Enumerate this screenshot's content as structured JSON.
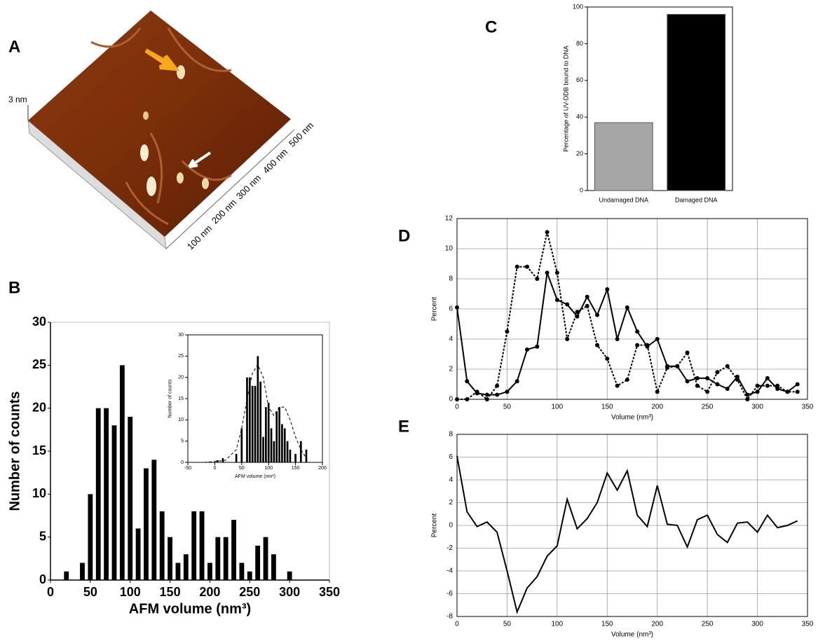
{
  "afm": {
    "panel": "A",
    "height_label": "3 nm",
    "scale_labels": [
      "100 nm",
      "200 nm",
      "300 nm",
      "400 nm",
      "500 nm"
    ]
  },
  "chart_data": [
    {
      "panel": "B",
      "type": "bar",
      "color": "#000000",
      "x": [
        20,
        40,
        50,
        60,
        70,
        80,
        90,
        100,
        110,
        120,
        130,
        140,
        150,
        160,
        170,
        180,
        190,
        200,
        210,
        220,
        230,
        240,
        250,
        260,
        270,
        280,
        300
      ],
      "values": [
        1,
        2,
        10,
        20,
        20,
        18,
        25,
        19,
        6,
        13,
        14,
        8,
        5,
        2,
        3,
        8,
        8,
        2,
        5,
        5,
        7,
        2,
        1,
        4,
        5,
        3,
        1
      ],
      "xlim": [
        0,
        350
      ],
      "xticks": [
        0,
        50,
        100,
        150,
        200,
        250,
        300,
        350
      ],
      "ylim": [
        0,
        30
      ],
      "yticks": [
        0,
        5,
        10,
        15,
        20,
        25,
        30
      ],
      "xlabel": "AFM volume (nm³)",
      "ylabel": "Number of counts"
    },
    {
      "type": "bar",
      "color": "#000000",
      "x": [
        5,
        15,
        40,
        50,
        60,
        65,
        70,
        75,
        80,
        85,
        90,
        95,
        100,
        105,
        110,
        115,
        120,
        125,
        130,
        135,
        140,
        150,
        160,
        170
      ],
      "values": [
        0.5,
        1,
        2,
        8,
        20,
        20,
        18,
        18,
        25,
        19,
        6,
        13,
        14,
        8,
        5,
        12,
        13,
        9,
        8,
        5,
        3,
        2,
        5,
        3
      ],
      "curve": {
        "x": [
          -20,
          0,
          20,
          40,
          50,
          60,
          70,
          80,
          90,
          100,
          110,
          120,
          130,
          140,
          150,
          160,
          170
        ],
        "values": [
          0,
          0.2,
          0.5,
          3,
          8,
          15,
          21,
          23,
          20,
          13,
          11,
          13,
          13,
          10,
          6,
          3,
          1
        ],
        "style": "dashed"
      },
      "xlim": [
        -50,
        200
      ],
      "xticks": [
        -50,
        0,
        50,
        100,
        150,
        200
      ],
      "ylim": [
        0,
        30
      ],
      "yticks": [
        0,
        5,
        10,
        15,
        20,
        25,
        30
      ],
      "xlabel": "AFM volume (nm³)",
      "ylabel": "Number of counts"
    },
    {
      "panel": "C",
      "type": "bar",
      "categories": [
        "Undamaged DNA",
        "Damaged DNA"
      ],
      "values": [
        37,
        96
      ],
      "colors": [
        "#a6a6a6",
        "#000000"
      ],
      "ylim": [
        0,
        100
      ],
      "yticks": [
        0,
        20,
        40,
        60,
        80,
        100
      ],
      "ylabel": "Percentage of UV-DDB bound to DNA"
    },
    {
      "panel": "D",
      "type": "line",
      "grid": true,
      "x": [
        0,
        10,
        20,
        30,
        40,
        50,
        60,
        70,
        80,
        90,
        100,
        110,
        120,
        130,
        140,
        150,
        160,
        170,
        180,
        190,
        200,
        210,
        220,
        230,
        240,
        250,
        260,
        270,
        280,
        290,
        300,
        310,
        320,
        330,
        340
      ],
      "series": [
        {
          "color": "#000000",
          "style": "solid",
          "markers": true,
          "values": [
            6.1,
            1.2,
            0.4,
            0.3,
            0.3,
            0.5,
            1.2,
            3.3,
            3.5,
            8.4,
            6.6,
            6.3,
            5.5,
            6.8,
            5.6,
            7.3,
            4.0,
            6.1,
            4.5,
            3.5,
            4.0,
            2.2,
            2.2,
            1.2,
            1.4,
            1.4,
            1.0,
            0.7,
            1.5,
            0.3,
            0.5,
            1.4,
            0.7,
            0.5,
            1.0
          ]
        },
        {
          "color": "#000000",
          "style": "dotted",
          "markers": true,
          "values": [
            0,
            0,
            0.5,
            0,
            0.9,
            4.5,
            8.8,
            8.8,
            8.0,
            11.1,
            8.4,
            4.0,
            5.8,
            6.2,
            3.6,
            2.7,
            0.9,
            1.3,
            3.6,
            3.6,
            0.5,
            2.1,
            2.2,
            3.1,
            0.9,
            0.5,
            1.8,
            2.2,
            1.3,
            0,
            0.9,
            0.9,
            0.9,
            0.5,
            0.5
          ]
        }
      ],
      "xlim": [
        0,
        350
      ],
      "xticks": [
        0,
        50,
        100,
        150,
        200,
        250,
        300,
        350
      ],
      "ylim": [
        0,
        12
      ],
      "yticks": [
        0,
        2,
        4,
        6,
        8,
        10,
        12
      ],
      "xlabel": "Volume (nm³)",
      "ylabel": "Percent"
    },
    {
      "panel": "E",
      "type": "line",
      "grid": true,
      "x": [
        0,
        10,
        20,
        30,
        40,
        50,
        60,
        70,
        80,
        90,
        100,
        110,
        120,
        130,
        140,
        150,
        160,
        170,
        180,
        190,
        200,
        210,
        220,
        230,
        240,
        250,
        260,
        270,
        280,
        290,
        300,
        310,
        320,
        330,
        340
      ],
      "series": [
        {
          "color": "#000000",
          "style": "solid",
          "markers": false,
          "values": [
            6.1,
            1.2,
            -0.1,
            0.3,
            -0.6,
            -4,
            -7.6,
            -5.5,
            -4.5,
            -2.7,
            -1.8,
            2.3,
            -0.3,
            0.6,
            2,
            4.6,
            3.1,
            4.8,
            0.9,
            -0.1,
            3.5,
            0.1,
            0,
            -1.9,
            0.5,
            0.9,
            -0.8,
            -1.5,
            0.2,
            0.3,
            -0.6,
            0.9,
            -0.2,
            0,
            0.4
          ]
        }
      ],
      "xlim": [
        0,
        350
      ],
      "xticks": [
        0,
        50,
        100,
        150,
        200,
        250,
        300,
        350
      ],
      "ylim": [
        -8,
        8
      ],
      "yticks": [
        -8,
        -6,
        -4,
        -2,
        0,
        2,
        4,
        6,
        8
      ],
      "xlabel": "Volume (nm³)",
      "ylabel": "Percent"
    }
  ]
}
